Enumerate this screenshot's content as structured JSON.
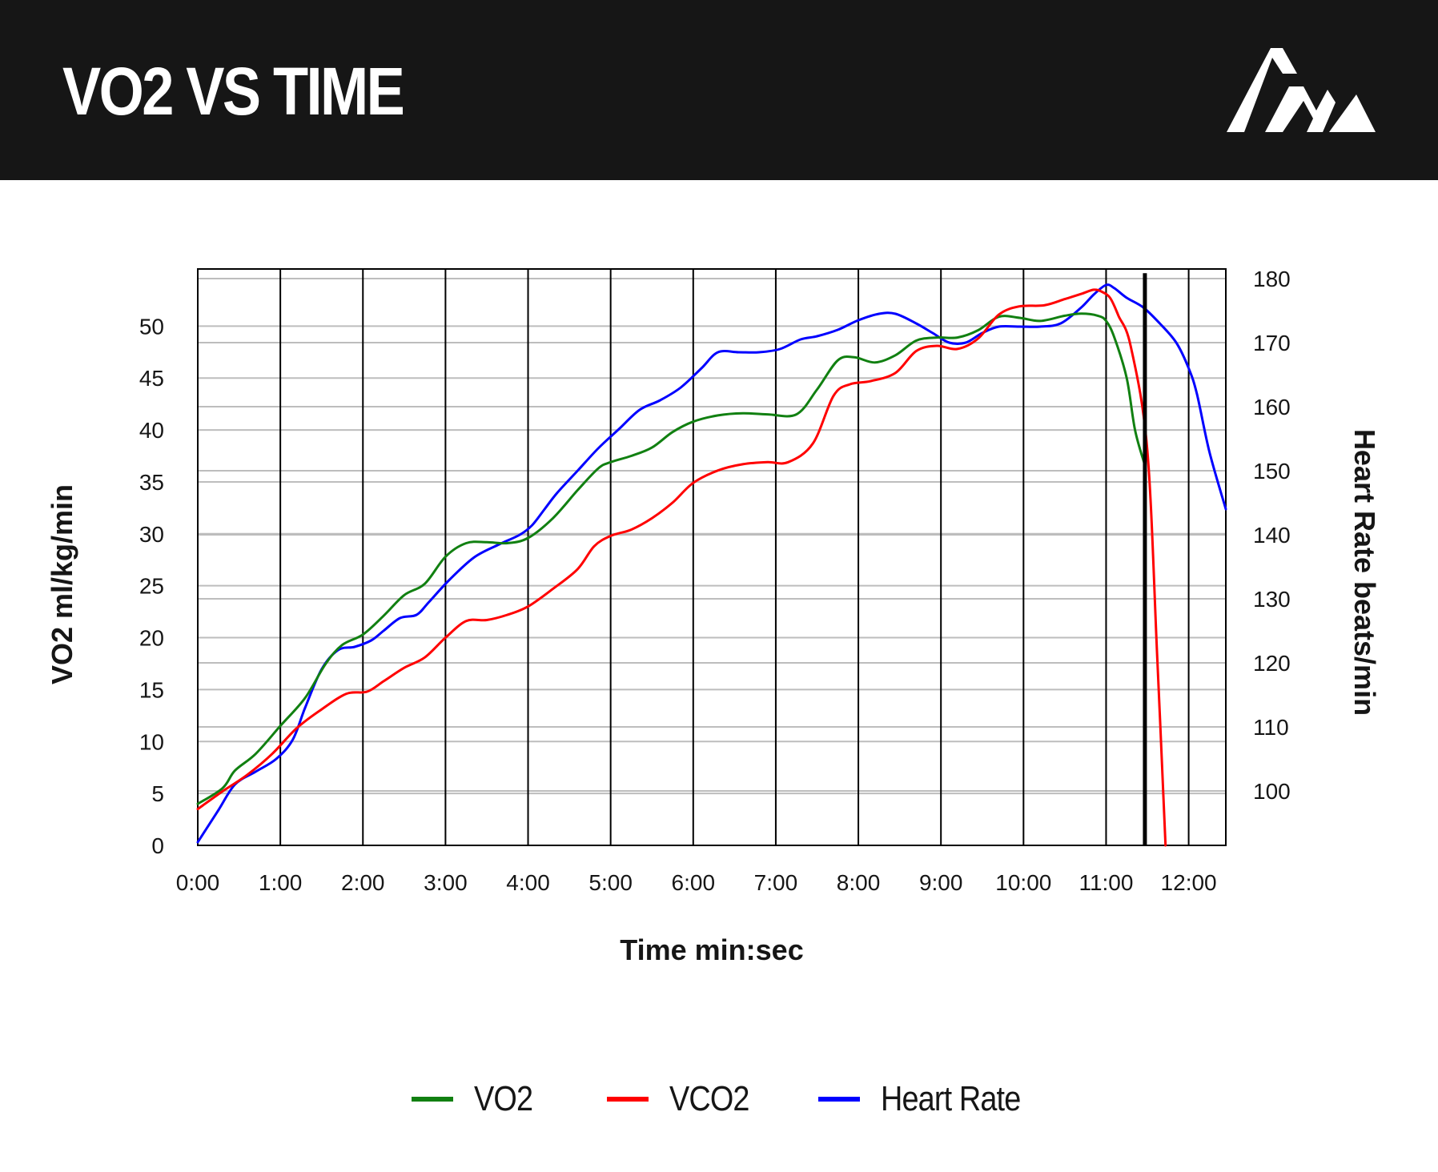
{
  "header": {
    "title": "VO2 VS TIME",
    "logo_icon": "mountain-peaks-logo-icon"
  },
  "colors": {
    "header_bg": "#161616",
    "header_text": "#ffffff",
    "vo2": "#118011",
    "vco2": "#ff0000",
    "heart_rate": "#0000ff",
    "marker": "#000000",
    "grid": "#bdbdbd",
    "vgrid": "#000000"
  },
  "chart_data": {
    "type": "line",
    "title": "VO2 VS TIME",
    "xlabel": "Time min:sec",
    "ylabel": "VO2 ml/kg/min",
    "y2label": "Heart Rate beats/min",
    "x_unit": "min",
    "xlim": [
      0,
      12.45
    ],
    "ylim": [
      0,
      55.5
    ],
    "y2lim": [
      91.5,
      181.5
    ],
    "x_tick_labels": [
      "0:00",
      "1:00",
      "2:00",
      "3:00",
      "4:00",
      "5:00",
      "6:00",
      "7:00",
      "8:00",
      "9:00",
      "10:00",
      "11:00",
      "12:00"
    ],
    "y_ticks": [
      0,
      5,
      10,
      15,
      20,
      25,
      30,
      35,
      40,
      45,
      50
    ],
    "y2_ticks": [
      100,
      110,
      120,
      130,
      140,
      150,
      160,
      170,
      180
    ],
    "grid": true,
    "legend_position": "bottom",
    "vertical_marker_x": 11.47,
    "series": [
      {
        "name": "VO2",
        "axis": "left",
        "color": "#118011",
        "x": [
          0,
          0.3,
          0.45,
          0.7,
          1.0,
          1.3,
          1.55,
          1.75,
          2.0,
          2.25,
          2.5,
          2.75,
          3.0,
          3.25,
          3.5,
          3.75,
          4.0,
          4.3,
          4.6,
          4.85,
          5.0,
          5.25,
          5.5,
          5.75,
          6.0,
          6.3,
          6.6,
          6.9,
          7.25,
          7.5,
          7.75,
          7.95,
          8.2,
          8.45,
          8.7,
          8.95,
          9.2,
          9.45,
          9.7,
          9.95,
          10.2,
          10.5,
          10.7,
          10.9,
          11.0,
          11.1,
          11.25,
          11.35,
          11.47
        ],
        "values": [
          4,
          5.5,
          7.2,
          8.8,
          11.5,
          14.2,
          17.5,
          19.3,
          20.3,
          22.1,
          24.1,
          25.2,
          27.8,
          29.1,
          29.2,
          29.1,
          29.6,
          31.5,
          34.2,
          36.3,
          36.9,
          37.5,
          38.3,
          39.8,
          40.8,
          41.4,
          41.6,
          41.5,
          41.5,
          43.9,
          46.7,
          47,
          46.5,
          47.2,
          48.6,
          48.9,
          48.9,
          49.6,
          50.9,
          50.8,
          50.5,
          51,
          51.2,
          51,
          50.5,
          48.9,
          45,
          40,
          36.6
        ]
      },
      {
        "name": "VCO2",
        "axis": "left",
        "color": "#ff0000",
        "x": [
          0,
          0.3,
          0.6,
          0.9,
          1.2,
          1.5,
          1.8,
          2.05,
          2.25,
          2.5,
          2.75,
          3.0,
          3.25,
          3.5,
          3.75,
          4.0,
          4.3,
          4.6,
          4.8,
          5.0,
          5.25,
          5.5,
          5.75,
          6.0,
          6.3,
          6.6,
          6.9,
          7.15,
          7.45,
          7.7,
          7.9,
          8.15,
          8.45,
          8.7,
          8.95,
          9.2,
          9.45,
          9.7,
          9.95,
          10.25,
          10.5,
          10.7,
          10.85,
          10.95,
          11.05,
          11.15,
          11.3,
          11.5,
          11.62,
          11.72
        ],
        "values": [
          3.5,
          5.2,
          6.8,
          8.8,
          11.3,
          13.1,
          14.6,
          14.8,
          15.8,
          17.1,
          18.1,
          20,
          21.6,
          21.7,
          22.2,
          23,
          24.7,
          26.6,
          28.8,
          29.8,
          30.4,
          31.5,
          33,
          34.9,
          36.1,
          36.7,
          36.9,
          36.9,
          38.7,
          43.3,
          44.4,
          44.7,
          45.5,
          47.6,
          48.1,
          47.8,
          48.8,
          51.1,
          51.9,
          52,
          52.6,
          53.1,
          53.5,
          53.3,
          52.7,
          51,
          48,
          38,
          18,
          0
        ]
      },
      {
        "name": "Heart Rate",
        "axis": "right",
        "color": "#0000ff",
        "x": [
          0,
          0.25,
          0.45,
          0.7,
          0.95,
          1.15,
          1.3,
          1.5,
          1.7,
          1.9,
          2.1,
          2.25,
          2.45,
          2.65,
          2.8,
          3.05,
          3.35,
          3.65,
          3.9,
          4.05,
          4.2,
          4.35,
          4.6,
          4.85,
          5.1,
          5.35,
          5.6,
          5.85,
          6.1,
          6.3,
          6.55,
          6.8,
          7.05,
          7.3,
          7.5,
          7.75,
          8.0,
          8.25,
          8.45,
          8.7,
          8.9,
          9.1,
          9.3,
          9.5,
          9.7,
          9.95,
          10.2,
          10.45,
          10.7,
          10.85,
          11.0,
          11.1,
          11.25,
          11.45,
          11.65,
          11.85,
          12.0,
          12.1,
          12.25,
          12.45
        ],
        "values": [
          92,
          97,
          101,
          103,
          105,
          108,
          113,
          119,
          122,
          122.5,
          123.5,
          125,
          127,
          127.5,
          129.5,
          133,
          136.5,
          138.5,
          140,
          141.5,
          144,
          146.5,
          150,
          153.5,
          156.5,
          159.5,
          161,
          163,
          166,
          168.5,
          168.5,
          168.5,
          169,
          170.5,
          171,
          172,
          173.5,
          174.5,
          174.5,
          173,
          171.5,
          170,
          170,
          171.5,
          172.5,
          172.5,
          172.5,
          173,
          175.5,
          177.5,
          179,
          178.5,
          177,
          175.5,
          173,
          170,
          166,
          162,
          153,
          144
        ]
      }
    ]
  },
  "legend": [
    {
      "label": "VO2",
      "color": "#118011"
    },
    {
      "label": "VCO2",
      "color": "#ff0000"
    },
    {
      "label": "Heart Rate",
      "color": "#0000ff"
    }
  ]
}
